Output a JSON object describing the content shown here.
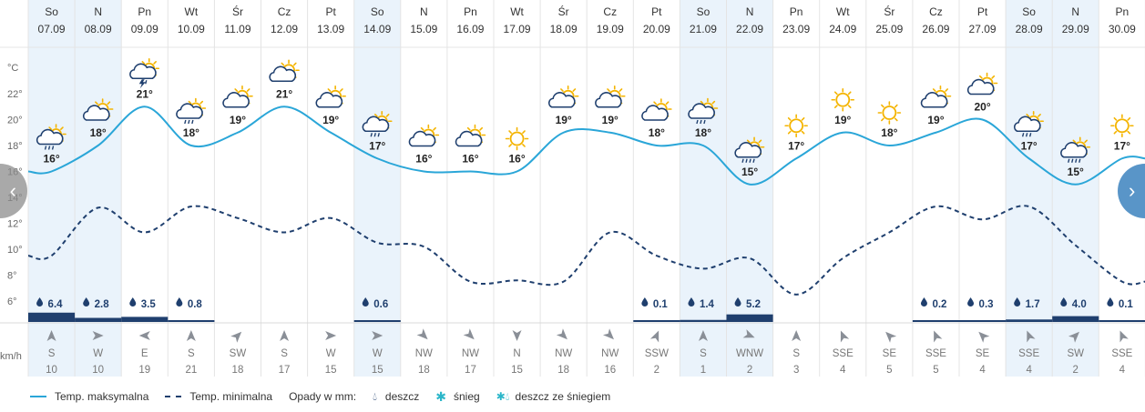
{
  "chart_data": {
    "type": "line",
    "y_unit": "°C",
    "y_ticks": [
      6,
      8,
      10,
      12,
      14,
      16,
      18,
      20,
      22
    ],
    "ylim": [
      4.6,
      23.8
    ],
    "wind_unit": "km/h",
    "days": [
      {
        "dow": "So",
        "date": "07.09",
        "weekend": true,
        "icon": "sun-cloud-rain-icon",
        "tmax": 16,
        "tmin": 9.5,
        "rain": "6.4",
        "rain_mm": 6.4,
        "wind_dir": "S",
        "wind_speed": "10"
      },
      {
        "dow": "N",
        "date": "08.09",
        "weekend": true,
        "icon": "sun-cloud-icon",
        "tmax": 18,
        "tmin": 13.2,
        "rain": "2.8",
        "rain_mm": 2.8,
        "wind_dir": "W",
        "wind_speed": "10"
      },
      {
        "dow": "Pn",
        "date": "09.09",
        "weekend": false,
        "icon": "thunderstorm-icon",
        "tmax": 21,
        "tmin": 11.3,
        "rain": "3.5",
        "rain_mm": 3.5,
        "wind_dir": "E",
        "wind_speed": "19"
      },
      {
        "dow": "Wt",
        "date": "10.09",
        "weekend": false,
        "icon": "sun-cloud-rain-icon",
        "tmax": 18,
        "tmin": 13.3,
        "rain": "0.8",
        "rain_mm": 0.8,
        "wind_dir": "S",
        "wind_speed": "21"
      },
      {
        "dow": "Śr",
        "date": "11.09",
        "weekend": false,
        "icon": "sun-cloud-icon",
        "tmax": 19,
        "tmin": 12.4,
        "rain": "",
        "rain_mm": 0,
        "wind_dir": "SW",
        "wind_speed": "18"
      },
      {
        "dow": "Cz",
        "date": "12.09",
        "weekend": false,
        "icon": "sun-cloud-icon",
        "tmax": 21,
        "tmin": 11.3,
        "rain": "",
        "rain_mm": 0,
        "wind_dir": "S",
        "wind_speed": "17"
      },
      {
        "dow": "Pt",
        "date": "13.09",
        "weekend": false,
        "icon": "sun-cloud-icon",
        "tmax": 19,
        "tmin": 12.4,
        "rain": "",
        "rain_mm": 0,
        "wind_dir": "W",
        "wind_speed": "15"
      },
      {
        "dow": "So",
        "date": "14.09",
        "weekend": true,
        "icon": "sun-cloud-rain-icon",
        "tmax": 17,
        "tmin": 10.5,
        "rain": "0.6",
        "rain_mm": 0.6,
        "wind_dir": "W",
        "wind_speed": "15"
      },
      {
        "dow": "N",
        "date": "15.09",
        "weekend": false,
        "icon": "sun-cloud-icon",
        "tmax": 16,
        "tmin": 10.2,
        "rain": "",
        "rain_mm": 0,
        "wind_dir": "NW",
        "wind_speed": "18"
      },
      {
        "dow": "Pn",
        "date": "16.09",
        "weekend": false,
        "icon": "sun-cloud-icon",
        "tmax": 16,
        "tmin": 7.5,
        "rain": "",
        "rain_mm": 0,
        "wind_dir": "NW",
        "wind_speed": "17"
      },
      {
        "dow": "Wt",
        "date": "17.09",
        "weekend": false,
        "icon": "sun-icon",
        "tmax": 16,
        "tmin": 7.6,
        "rain": "",
        "rain_mm": 0,
        "wind_dir": "N",
        "wind_speed": "15"
      },
      {
        "dow": "Śr",
        "date": "18.09",
        "weekend": false,
        "icon": "sun-cloud-icon",
        "tmax": 19,
        "tmin": 7.5,
        "rain": "",
        "rain_mm": 0,
        "wind_dir": "NW",
        "wind_speed": "18"
      },
      {
        "dow": "Cz",
        "date": "19.09",
        "weekend": false,
        "icon": "sun-cloud-icon",
        "tmax": 19,
        "tmin": 11.3,
        "rain": "",
        "rain_mm": 0,
        "wind_dir": "NW",
        "wind_speed": "16"
      },
      {
        "dow": "Pt",
        "date": "20.09",
        "weekend": false,
        "icon": "sun-cloud-icon",
        "tmax": 18,
        "tmin": 9.5,
        "rain": "0.1",
        "rain_mm": 0.1,
        "wind_dir": "SSW",
        "wind_speed": "2"
      },
      {
        "dow": "So",
        "date": "21.09",
        "weekend": true,
        "icon": "sun-cloud-rain-icon",
        "tmax": 18,
        "tmin": 8.5,
        "rain": "1.4",
        "rain_mm": 1.4,
        "wind_dir": "S",
        "wind_speed": "1"
      },
      {
        "dow": "N",
        "date": "22.09",
        "weekend": true,
        "icon": "rain-icon",
        "tmax": 15,
        "tmin": 9.3,
        "rain": "5.2",
        "rain_mm": 5.2,
        "wind_dir": "WNW",
        "wind_speed": "2"
      },
      {
        "dow": "Pn",
        "date": "23.09",
        "weekend": false,
        "icon": "sun-icon",
        "tmax": 17,
        "tmin": 6.5,
        "rain": "",
        "rain_mm": 0,
        "wind_dir": "S",
        "wind_speed": "3"
      },
      {
        "dow": "Wt",
        "date": "24.09",
        "weekend": false,
        "icon": "sun-icon",
        "tmax": 19,
        "tmin": 9.3,
        "rain": "",
        "rain_mm": 0,
        "wind_dir": "SSE",
        "wind_speed": "4"
      },
      {
        "dow": "Śr",
        "date": "25.09",
        "weekend": false,
        "icon": "sun-icon",
        "tmax": 18,
        "tmin": 11.3,
        "rain": "",
        "rain_mm": 0,
        "wind_dir": "SE",
        "wind_speed": "5"
      },
      {
        "dow": "Cz",
        "date": "26.09",
        "weekend": false,
        "icon": "sun-cloud-icon",
        "tmax": 19,
        "tmin": 13.3,
        "rain": "0.2",
        "rain_mm": 0.2,
        "wind_dir": "SSE",
        "wind_speed": "5"
      },
      {
        "dow": "Pt",
        "date": "27.09",
        "weekend": false,
        "icon": "sun-cloud-icon",
        "tmax": 20,
        "tmin": 12.3,
        "rain": "0.3",
        "rain_mm": 0.3,
        "wind_dir": "SE",
        "wind_speed": "4"
      },
      {
        "dow": "So",
        "date": "28.09",
        "weekend": true,
        "icon": "sun-cloud-rain-icon",
        "tmax": 17,
        "tmin": 13.3,
        "rain": "1.7",
        "rain_mm": 1.7,
        "wind_dir": "SSE",
        "wind_speed": "4"
      },
      {
        "dow": "N",
        "date": "29.09",
        "weekend": true,
        "icon": "rain-icon",
        "tmax": 15,
        "tmin": 10.3,
        "rain": "4.0",
        "rain_mm": 4.0,
        "wind_dir": "SW",
        "wind_speed": "2"
      },
      {
        "dow": "Pn",
        "date": "30.09",
        "weekend": false,
        "icon": "sun-icon",
        "tmax": 17,
        "tmin": 7.5,
        "rain": "0.1",
        "rain_mm": 0.1,
        "wind_dir": "SSE",
        "wind_speed": "4"
      }
    ],
    "series": [
      {
        "name": "Temp. maksymalna",
        "key": "tmax",
        "style": "solid",
        "color": "#2aa6d8"
      },
      {
        "name": "Temp. minimalna",
        "key": "tmin",
        "style": "dashed",
        "color": "#1f3f6e"
      }
    ]
  },
  "legend": {
    "max_label": "Temp. maksymalna",
    "min_label": "Temp. minimalna",
    "precip_label": "Opady w mm:",
    "rain_label": "deszcz",
    "snow_label": "śnieg",
    "mixed_label": "deszcz ze śniegiem"
  },
  "colors": {
    "weekend_bg": "#eaf3fb",
    "max_line": "#2aa6d8",
    "min_line": "#1f3f6e",
    "rain_bar": "#1f3f6e",
    "sun": "#f4b400",
    "cloud_stroke": "#1f3f6e",
    "grid": "#e4e4e4"
  },
  "nav": {
    "prev": "‹",
    "next": "›"
  }
}
